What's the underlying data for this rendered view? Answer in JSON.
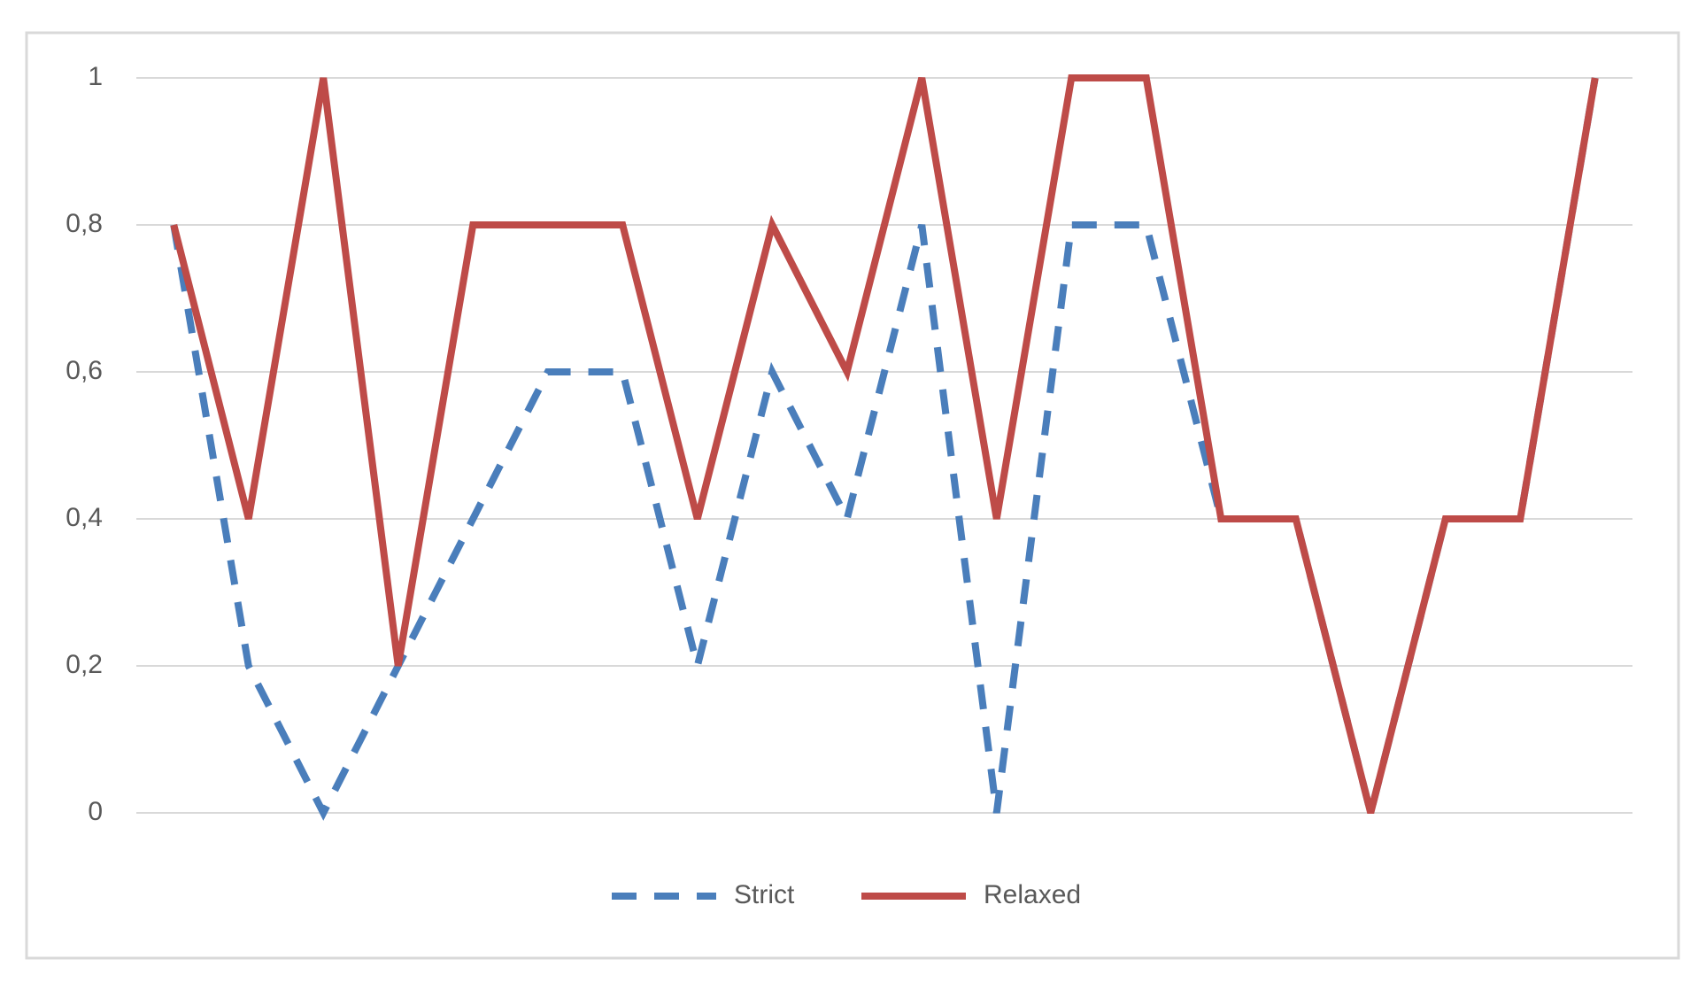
{
  "chart_data": {
    "type": "line",
    "categories": [
      null,
      null,
      null,
      null,
      null,
      null,
      null,
      null,
      null,
      null,
      null,
      null,
      null,
      null,
      null,
      null,
      null,
      null,
      null,
      null
    ],
    "series": [
      {
        "name": "Strict",
        "color": "#4a7ebb",
        "dash": true,
        "values": [
          0.8,
          0.2,
          0,
          0.2,
          0.4,
          0.6,
          0.6,
          0.2,
          0.6,
          0.4,
          0.8,
          0,
          0.8,
          0.8,
          0.4,
          0.4,
          0,
          0.4,
          0.4,
          1
        ]
      },
      {
        "name": "Relaxed",
        "color": "#be4b48",
        "dash": false,
        "values": [
          0.8,
          0.4,
          1,
          0.2,
          0.8,
          0.8,
          0.8,
          0.4,
          0.8,
          0.6,
          1,
          0.4,
          1,
          1,
          0.4,
          0.4,
          0,
          0.4,
          0.4,
          1
        ]
      }
    ],
    "ylim": [
      0,
      1
    ],
    "yticks": [
      0,
      {
        "value": 0.2,
        "label": "0,2"
      },
      {
        "value": 0.4,
        "label": "0,4"
      },
      {
        "value": 0.6,
        "label": "0,6"
      },
      {
        "value": 0.8,
        "label": "0,8"
      },
      1
    ],
    "grid": true,
    "legend": "bottom"
  }
}
